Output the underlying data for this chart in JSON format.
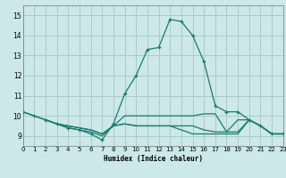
{
  "xlabel": "Humidex (Indice chaleur)",
  "background_color": "#cce8e8",
  "grid_color": "#aacccc",
  "line_color": "#1a7a6e",
  "xlim": [
    0,
    23
  ],
  "ylim": [
    8.5,
    15.5
  ],
  "yticks": [
    9,
    10,
    11,
    12,
    13,
    14,
    15
  ],
  "xticks": [
    0,
    1,
    2,
    3,
    4,
    5,
    6,
    7,
    8,
    9,
    10,
    11,
    12,
    13,
    14,
    15,
    16,
    17,
    18,
    19,
    20,
    21,
    22,
    23
  ],
  "lines": [
    {
      "x": [
        0,
        1,
        2,
        3,
        4,
        5,
        6,
        7,
        8,
        9,
        10,
        11,
        12,
        13,
        14,
        15,
        16,
        17,
        18,
        19,
        20,
        21,
        22,
        23
      ],
      "y": [
        10.2,
        10.0,
        9.8,
        9.6,
        9.4,
        9.3,
        9.1,
        8.8,
        9.6,
        11.1,
        12.0,
        13.3,
        13.4,
        14.8,
        14.7,
        14.0,
        12.7,
        10.5,
        10.2,
        10.2,
        9.8,
        9.5,
        9.1,
        9.1
      ],
      "marker": true
    },
    {
      "x": [
        0,
        1,
        2,
        3,
        4,
        5,
        6,
        7,
        8,
        9,
        10,
        11,
        12,
        13,
        14,
        15,
        16,
        17,
        18,
        19,
        20,
        21,
        22,
        23
      ],
      "y": [
        10.2,
        10.0,
        9.8,
        9.6,
        9.4,
        9.3,
        9.2,
        9.0,
        9.5,
        10.0,
        10.0,
        10.0,
        10.0,
        10.0,
        10.0,
        10.0,
        10.1,
        10.1,
        9.2,
        9.8,
        9.8,
        9.5,
        9.1,
        9.1
      ],
      "marker": false
    },
    {
      "x": [
        2,
        3,
        4,
        5,
        6,
        7,
        8,
        9,
        10,
        11,
        12,
        13,
        14,
        15,
        16,
        17,
        18,
        19,
        20,
        21,
        22,
        23
      ],
      "y": [
        9.8,
        9.6,
        9.5,
        9.4,
        9.3,
        9.1,
        9.5,
        9.6,
        9.5,
        9.5,
        9.5,
        9.5,
        9.5,
        9.5,
        9.3,
        9.2,
        9.2,
        9.2,
        9.8,
        9.5,
        9.1,
        9.1
      ],
      "marker": false
    },
    {
      "x": [
        2,
        3,
        4,
        5,
        6,
        7,
        8,
        9,
        10,
        11,
        12,
        13,
        14,
        15,
        16,
        17,
        18,
        19,
        20,
        21,
        22,
        23
      ],
      "y": [
        9.8,
        9.6,
        9.5,
        9.4,
        9.3,
        9.1,
        9.5,
        9.6,
        9.5,
        9.5,
        9.5,
        9.5,
        9.3,
        9.1,
        9.1,
        9.1,
        9.1,
        9.1,
        9.8,
        9.5,
        9.1,
        9.1
      ],
      "marker": false
    }
  ]
}
